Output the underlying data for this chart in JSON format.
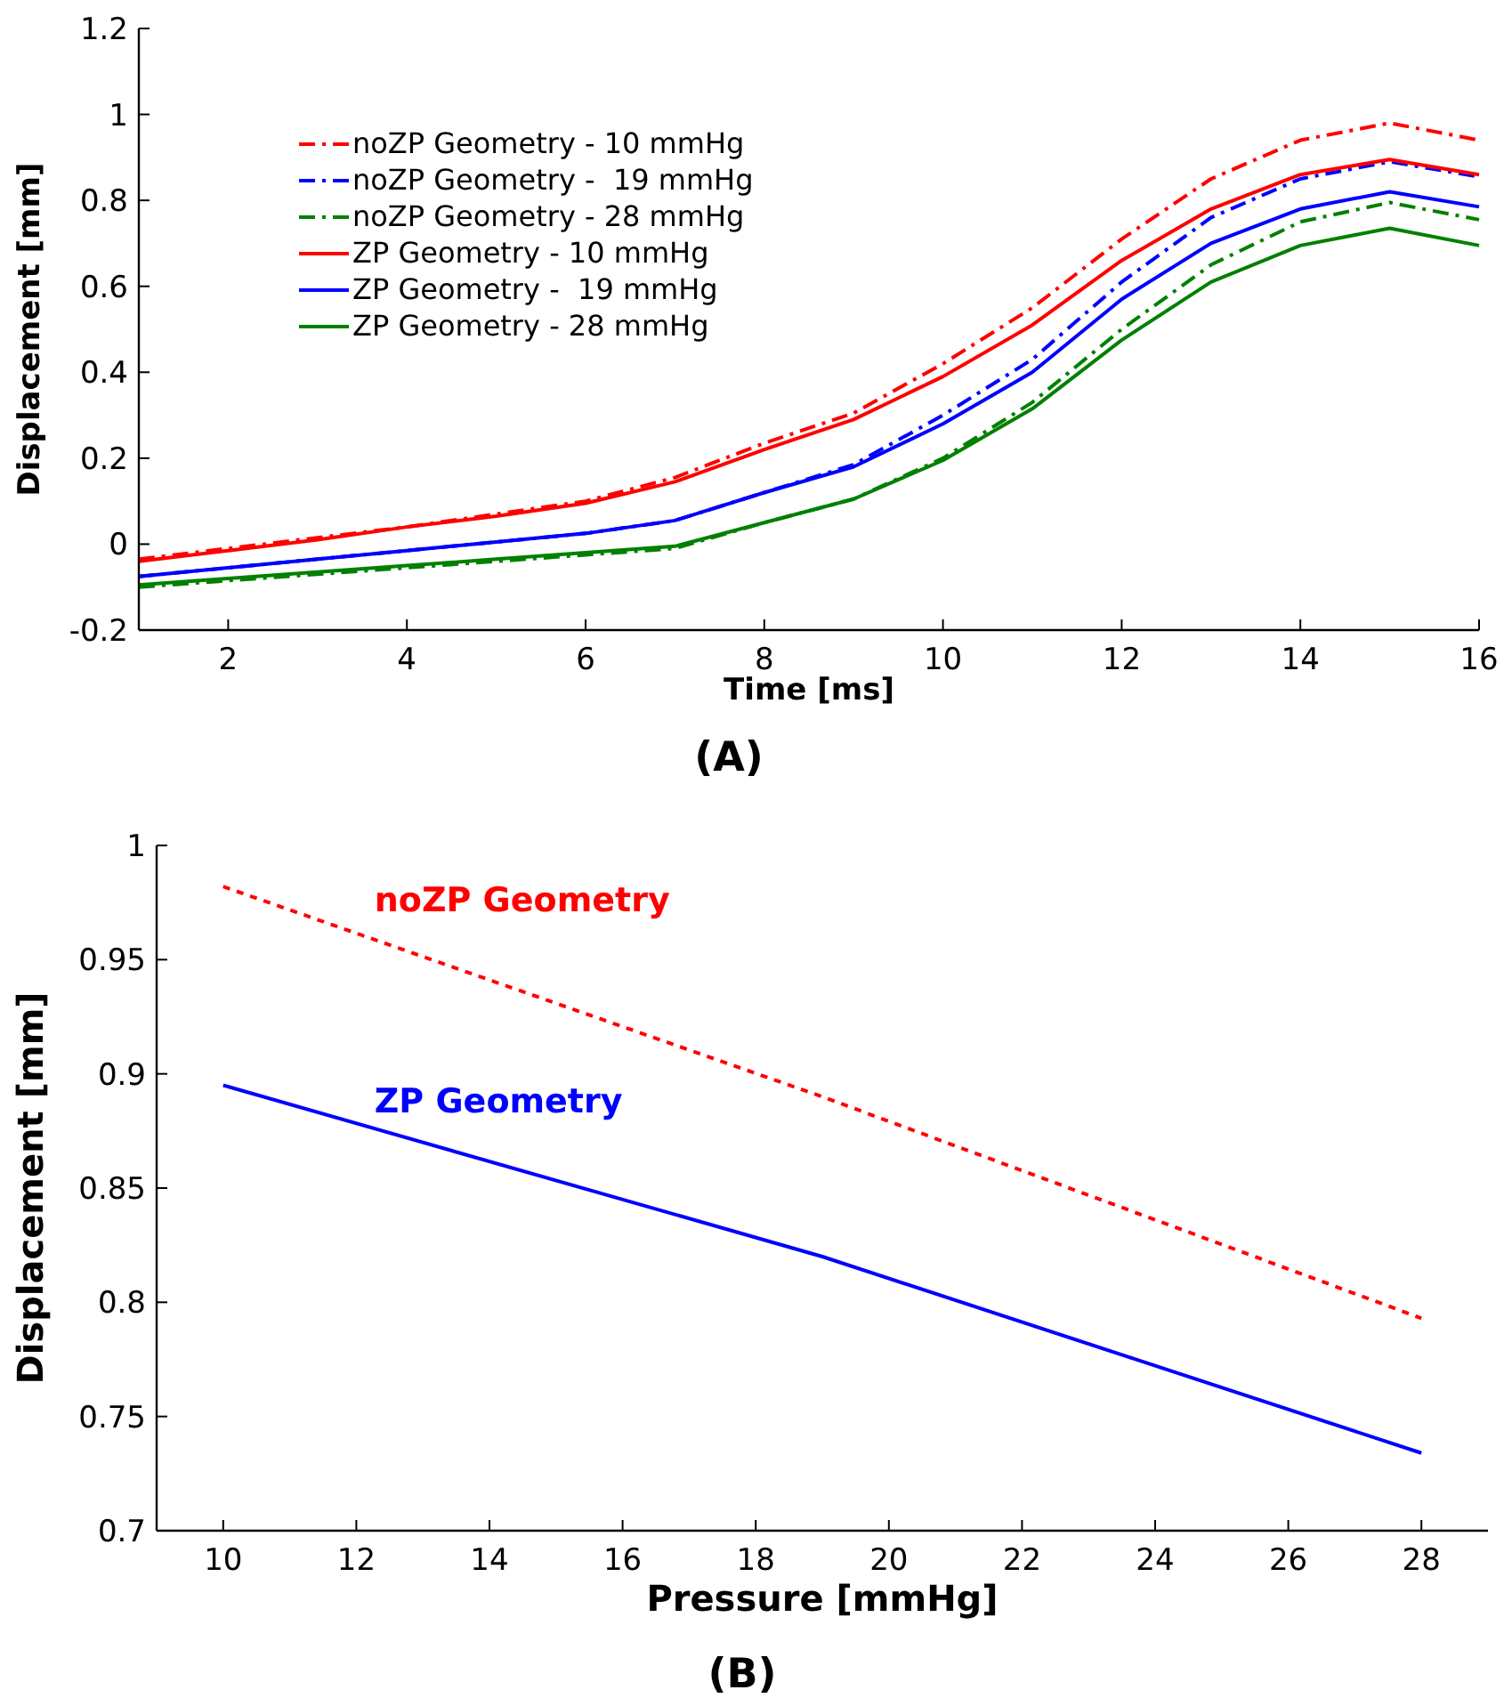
{
  "chart_data": [
    {
      "type": "line",
      "xlabel": "Time [ms]",
      "ylabel": "Displacement [mm]",
      "annotations": [
        "(A)"
      ],
      "xlim": [
        1,
        16
      ],
      "xticks": [
        2,
        4,
        6,
        8,
        10,
        12,
        14,
        16
      ],
      "ylim": [
        -0.2,
        1.2
      ],
      "yticks": [
        -0.2,
        0,
        0.2,
        0.4,
        0.6,
        0.8,
        1,
        1.2
      ],
      "grid": false,
      "legend": "top left",
      "x": [
        1,
        2,
        3,
        4,
        5,
        6,
        7,
        8,
        9,
        10,
        11,
        12,
        13,
        14,
        15,
        16
      ],
      "series": [
        {
          "name": "noZP Geometry - 10 mmHg",
          "color": "#ff0000",
          "line_style": "dashed",
          "values": [
            -0.035,
            -0.01,
            0.015,
            0.04,
            0.07,
            0.1,
            0.155,
            0.235,
            0.305,
            0.42,
            0.55,
            0.71,
            0.85,
            0.94,
            0.98,
            0.94
          ]
        },
        {
          "name": "noZP Geometry -  19 mmHg",
          "color": "#0000ff",
          "line_style": "dashed",
          "values": [
            -0.075,
            -0.055,
            -0.035,
            -0.015,
            0.005,
            0.025,
            0.055,
            0.12,
            0.185,
            0.3,
            0.43,
            0.61,
            0.76,
            0.85,
            0.89,
            0.855
          ]
        },
        {
          "name": "noZP Geometry - 28 mmHg",
          "color": "#008000",
          "line_style": "dashed",
          "values": [
            -0.1,
            -0.085,
            -0.07,
            -0.055,
            -0.04,
            -0.025,
            -0.01,
            0.05,
            0.105,
            0.2,
            0.33,
            0.5,
            0.65,
            0.75,
            0.795,
            0.755
          ]
        },
        {
          "name": "ZP Geometry - 10 mmHg",
          "color": "#ff0000",
          "line_style": "solid",
          "values": [
            -0.04,
            -0.015,
            0.01,
            0.04,
            0.065,
            0.095,
            0.145,
            0.22,
            0.29,
            0.39,
            0.51,
            0.66,
            0.78,
            0.86,
            0.895,
            0.86
          ]
        },
        {
          "name": "ZP Geometry -  19 mmHg",
          "color": "#0000ff",
          "line_style": "solid",
          "values": [
            -0.075,
            -0.055,
            -0.035,
            -0.015,
            0.005,
            0.025,
            0.055,
            0.12,
            0.18,
            0.28,
            0.4,
            0.57,
            0.7,
            0.78,
            0.82,
            0.785
          ]
        },
        {
          "name": "ZP Geometry - 28 mmHg",
          "color": "#008000",
          "line_style": "solid",
          "values": [
            -0.095,
            -0.08,
            -0.065,
            -0.05,
            -0.035,
            -0.02,
            -0.005,
            0.05,
            0.105,
            0.195,
            0.315,
            0.475,
            0.61,
            0.695,
            0.735,
            0.695
          ]
        }
      ]
    },
    {
      "type": "line",
      "xlabel": "Pressure [mmHg]",
      "ylabel": "Displacement [mm]",
      "annotations": [
        "(B)"
      ],
      "xlim": [
        9,
        29
      ],
      "xticks": [
        10,
        12,
        14,
        16,
        18,
        20,
        22,
        24,
        26,
        28
      ],
      "ylim": [
        0.7,
        1
      ],
      "yticks": [
        0.7,
        0.75,
        0.8,
        0.85,
        0.9,
        0.95,
        1
      ],
      "grid": false,
      "legend": false,
      "x": [
        10,
        19,
        28
      ],
      "series": [
        {
          "name": "noZP Geometry",
          "color": "#ff0000",
          "line_style": "dotted",
          "values": [
            0.982,
            0.89,
            0.793
          ]
        },
        {
          "name": "ZP Geometry",
          "color": "#0000ff",
          "line_style": "solid",
          "values": [
            0.895,
            0.82,
            0.734
          ]
        }
      ]
    }
  ]
}
